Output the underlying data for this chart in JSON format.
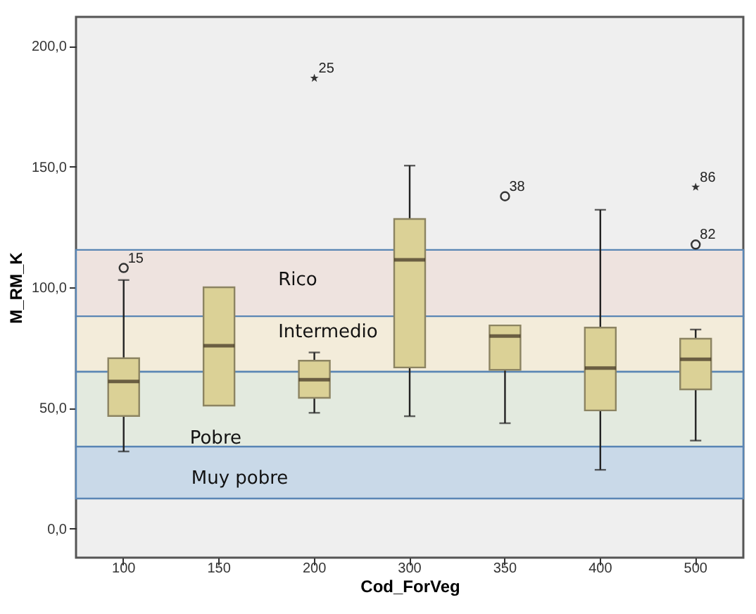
{
  "chart_data": {
    "type": "box",
    "xlabel": "Cod_ForVeg",
    "ylabel": "M_RM_K",
    "categories": [
      "100",
      "150",
      "200",
      "300",
      "350",
      "400",
      "500"
    ],
    "ylim": [
      -12,
      212
    ],
    "yticks": [
      {
        "value": 0,
        "label": "0,0"
      },
      {
        "value": 50,
        "label": "50,0"
      },
      {
        "value": 100,
        "label": "100,0"
      },
      {
        "value": 150,
        "label": "150,0"
      },
      {
        "value": 200,
        "label": "200,0"
      }
    ],
    "grid": false,
    "bands": [
      {
        "axis": "y",
        "from": 88,
        "to": 115.5,
        "label": "Rico",
        "color": "#eee3df"
      },
      {
        "axis": "y",
        "from": 65,
        "to": 88,
        "label": "Intermedio",
        "color": "#f3ecda"
      },
      {
        "axis": "y",
        "from": 34,
        "to": 65,
        "label": "Pobre",
        "color": "#e3eadf"
      },
      {
        "axis": "y",
        "from": 12.5,
        "to": 34,
        "label": "Muy pobre",
        "color": "#c9d9e8"
      }
    ],
    "series": [
      {
        "color": "#dbd196",
        "boxes": [
          {
            "low": 32,
            "q1": 46.7,
            "median": 61,
            "q3": 70.6,
            "high": 103
          },
          {
            "low": 51,
            "q1": 51,
            "median": 75.8,
            "q3": 100,
            "high": 100
          },
          {
            "low": 48,
            "q1": 54.2,
            "median": 61.7,
            "q3": 69.6,
            "high": 73
          },
          {
            "low": 46.6,
            "q1": 66.8,
            "median": 111.4,
            "q3": 128.3,
            "high": 150.4
          },
          {
            "low": 43.7,
            "q1": 65.8,
            "median": 79.8,
            "q3": 84.2,
            "high": 84.2
          },
          {
            "low": 24.4,
            "q1": 49,
            "median": 66.5,
            "q3": 83.3,
            "high": 132.1
          },
          {
            "low": 36.5,
            "q1": 57.7,
            "median": 70.2,
            "q3": 78.7,
            "high": 82.5
          }
        ]
      },
      {
        "type": "scatter",
        "marker": "circle",
        "color": "#333333",
        "x": [
          "100",
          "350",
          "500"
        ],
        "values": [
          108,
          137.7,
          117.7
        ]
      },
      {
        "type": "scatter",
        "marker": "star",
        "color": "#333333",
        "x": [
          "200",
          "500"
        ],
        "values": [
          186.6,
          141.5
        ]
      }
    ],
    "annotations": [
      "15",
      "38",
      "82",
      "25",
      "86"
    ]
  }
}
